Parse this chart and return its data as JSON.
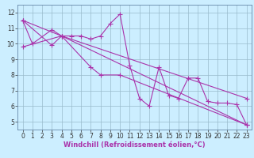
{
  "title": "",
  "xlabel": "Windchill (Refroidissement éolien,°C)",
  "ylabel": "",
  "bg_color": "#cceeff",
  "line_color": "#aa33aa",
  "grid_color": "#99bbcc",
  "xlim": [
    -0.5,
    23.5
  ],
  "ylim": [
    4.5,
    12.5
  ],
  "yticks": [
    5,
    6,
    7,
    8,
    9,
    10,
    11,
    12
  ],
  "xticks": [
    0,
    1,
    2,
    3,
    4,
    5,
    6,
    7,
    8,
    9,
    10,
    11,
    12,
    13,
    14,
    15,
    16,
    17,
    18,
    19,
    20,
    21,
    22,
    23
  ],
  "lines": [
    {
      "x": [
        0,
        1,
        3,
        4,
        5,
        6,
        7,
        8,
        9,
        10,
        11,
        12,
        13,
        14,
        15,
        16,
        17,
        18,
        19,
        20,
        21,
        22,
        23
      ],
      "y": [
        11.5,
        10.0,
        10.9,
        10.5,
        10.5,
        10.5,
        10.3,
        10.5,
        11.3,
        11.9,
        8.6,
        6.5,
        6.0,
        8.5,
        6.7,
        6.5,
        7.8,
        7.8,
        6.3,
        6.2,
        6.2,
        6.1,
        4.8
      ]
    },
    {
      "x": [
        0,
        3,
        4,
        7,
        8,
        10,
        23
      ],
      "y": [
        11.5,
        9.9,
        10.5,
        8.5,
        8.0,
        8.0,
        4.8
      ]
    },
    {
      "x": [
        0,
        4,
        23
      ],
      "y": [
        11.5,
        10.5,
        4.8
      ]
    },
    {
      "x": [
        0,
        4,
        23
      ],
      "y": [
        9.8,
        10.5,
        6.5
      ]
    }
  ],
  "marker": "+",
  "markersize": 4,
  "linewidth": 0.8,
  "tick_fontsize": 5.5,
  "label_fontsize": 6.0,
  "spine_color": "#6688aa"
}
